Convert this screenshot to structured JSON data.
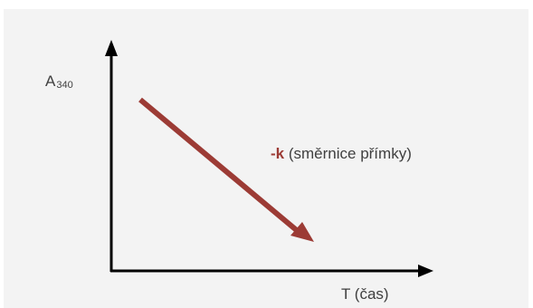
{
  "diagram": {
    "y_axis_label": {
      "main": "A",
      "subscript": "340"
    },
    "x_axis_label": "T (čas)",
    "slope_annotation": {
      "symbol": "-k",
      "text": " (směrnice přímky)"
    },
    "arrow_color": "#9c3b35",
    "axis_color": "#000000",
    "background_color": "#f3f3f3"
  }
}
